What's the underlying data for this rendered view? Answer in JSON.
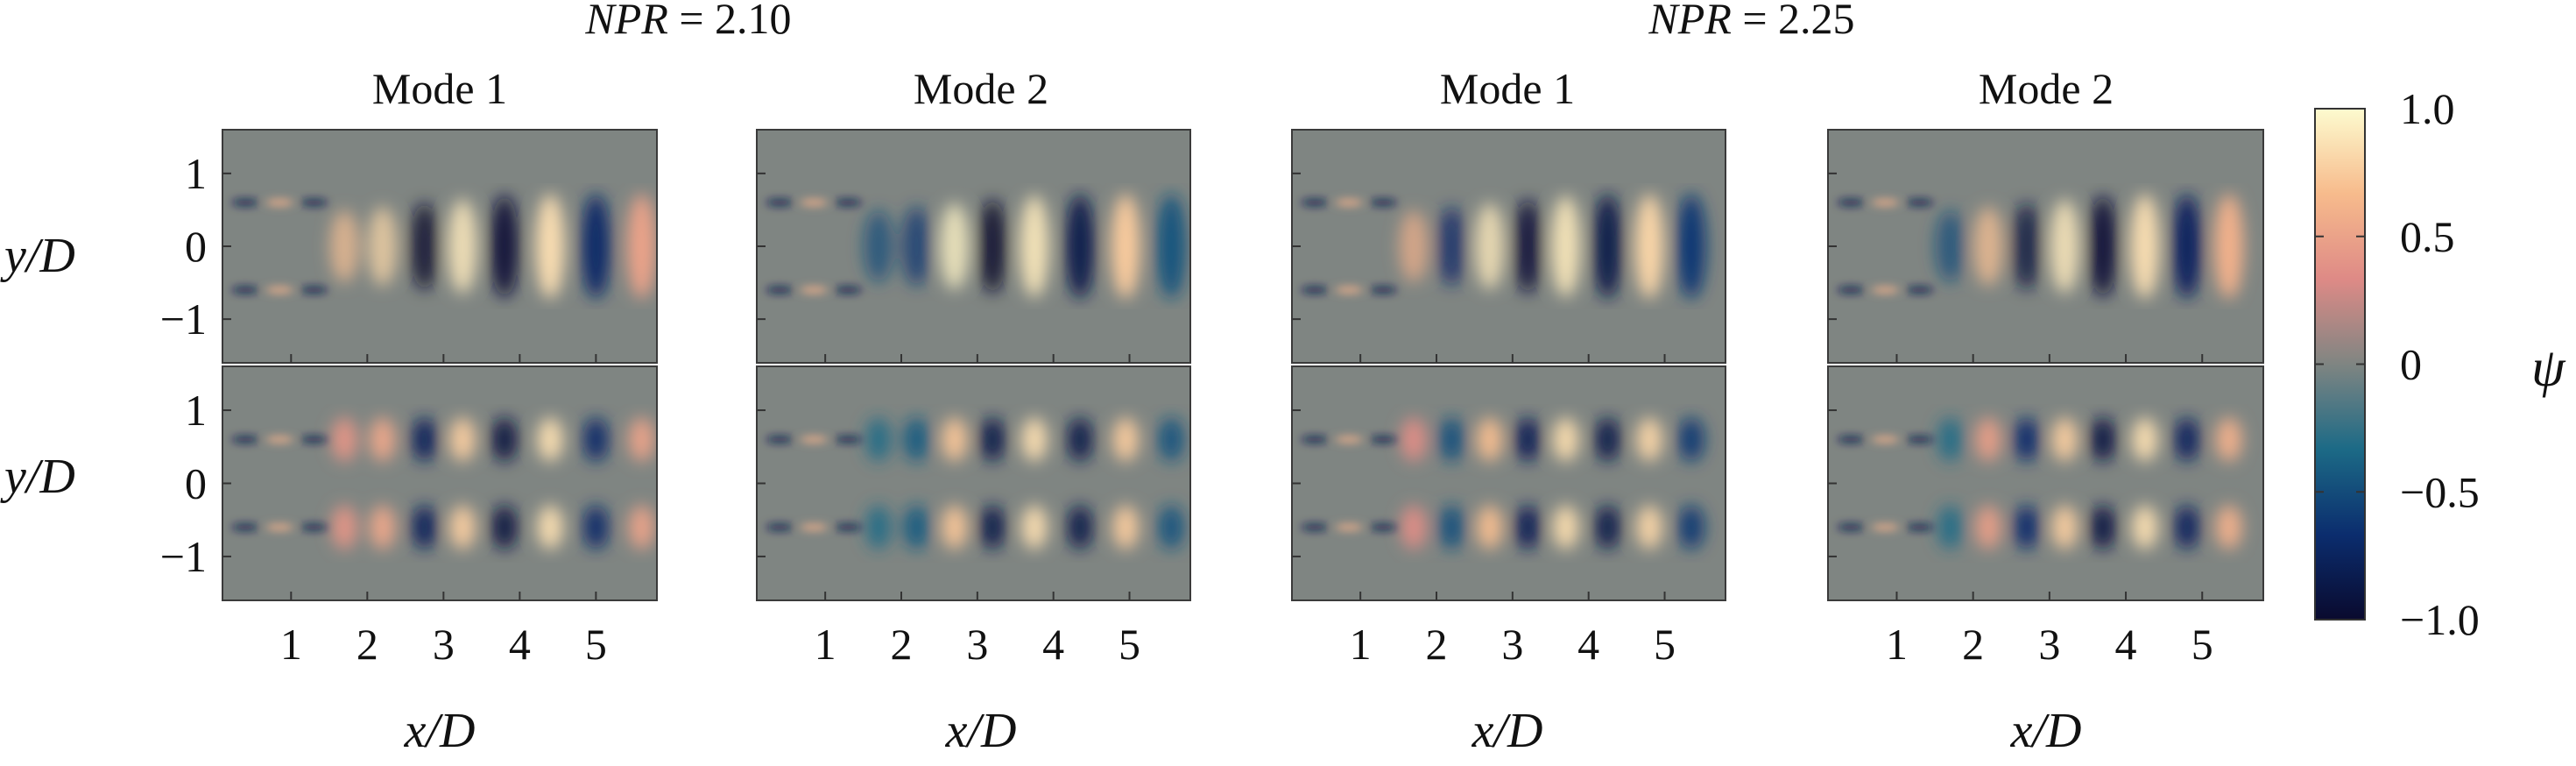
{
  "chart_data": {
    "type": "heatmap",
    "variable": "ψ",
    "colorbar": {
      "label": "ψ",
      "range": [
        -1.0,
        1.0
      ],
      "ticks": [
        "1.0",
        "0.5",
        "0",
        "−0.5",
        "−1.0"
      ],
      "tick_values": [
        1.0,
        0.5,
        0.0,
        -0.5,
        -1.0
      ],
      "stops": [
        "#0a0a2e",
        "#0b2d6e",
        "#1c6a86",
        "#7f8582",
        "#de8a86",
        "#f7bb8c",
        "#fdfbcf"
      ]
    },
    "groups": [
      {
        "label": "NPR = 2.10"
      },
      {
        "label": "NPR = 2.25"
      }
    ],
    "panels": [
      {
        "group": 0,
        "title": "Mode 1"
      },
      {
        "group": 0,
        "title": "Mode 2"
      },
      {
        "group": 1,
        "title": "Mode 1"
      },
      {
        "group": 1,
        "title": "Mode 2"
      }
    ],
    "rows": [
      {
        "ylabel": "y/D",
        "yticks": [
          "1",
          "0",
          "−1"
        ],
        "ytick_values": [
          1,
          0,
          -1
        ]
      },
      {
        "ylabel": "y/D",
        "yticks": [
          "1",
          "0",
          "−1"
        ],
        "ytick_values": [
          1,
          0,
          -1
        ]
      }
    ],
    "x_axis": {
      "label": "x/D",
      "ticks": [
        "1",
        "2",
        "3",
        "4",
        "5"
      ],
      "tick_values": [
        1,
        2,
        3,
        4,
        5
      ],
      "range": [
        0.1,
        5.8
      ]
    },
    "y_axis": {
      "range": [
        -1.6,
        1.6
      ]
    },
    "structures": [
      [
        {
          "x": 1.7,
          "value": 0.7
        },
        {
          "x": 2.2,
          "value": 0.8
        },
        {
          "x": 2.75,
          "value": -1.0
        },
        {
          "x": 3.25,
          "value": 0.9
        },
        {
          "x": 3.8,
          "value": -0.95
        },
        {
          "x": 4.4,
          "value": 0.85
        },
        {
          "x": 5.0,
          "value": -0.7
        },
        {
          "x": 5.6,
          "value": 0.5
        }
      ],
      [
        {
          "x": 1.7,
          "value": -0.5
        },
        {
          "x": 2.2,
          "value": -0.6
        },
        {
          "x": 2.7,
          "value": 0.95
        },
        {
          "x": 3.2,
          "value": -1.0
        },
        {
          "x": 3.75,
          "value": 0.9
        },
        {
          "x": 4.35,
          "value": -0.85
        },
        {
          "x": 4.95,
          "value": 0.75
        },
        {
          "x": 5.55,
          "value": -0.45
        }
      ],
      [
        {
          "x": 1.7,
          "value": 0.6
        },
        {
          "x": 2.2,
          "value": -0.7
        },
        {
          "x": 2.7,
          "value": 0.9
        },
        {
          "x": 3.2,
          "value": -0.95
        },
        {
          "x": 3.7,
          "value": 0.9
        },
        {
          "x": 4.25,
          "value": -0.85
        },
        {
          "x": 4.8,
          "value": 0.8
        },
        {
          "x": 5.35,
          "value": -0.6
        }
      ],
      [
        {
          "x": 1.7,
          "value": -0.5
        },
        {
          "x": 2.2,
          "value": 0.7
        },
        {
          "x": 2.7,
          "value": -0.9
        },
        {
          "x": 3.2,
          "value": 0.9
        },
        {
          "x": 3.7,
          "value": -0.95
        },
        {
          "x": 4.25,
          "value": 0.85
        },
        {
          "x": 4.8,
          "value": -0.75
        },
        {
          "x": 5.35,
          "value": 0.6
        }
      ]
    ],
    "top_row": "central structures between shear layers at y/D = ±0.6",
    "bottom_row": "shear-layer structures at y/D = ±0.6"
  }
}
